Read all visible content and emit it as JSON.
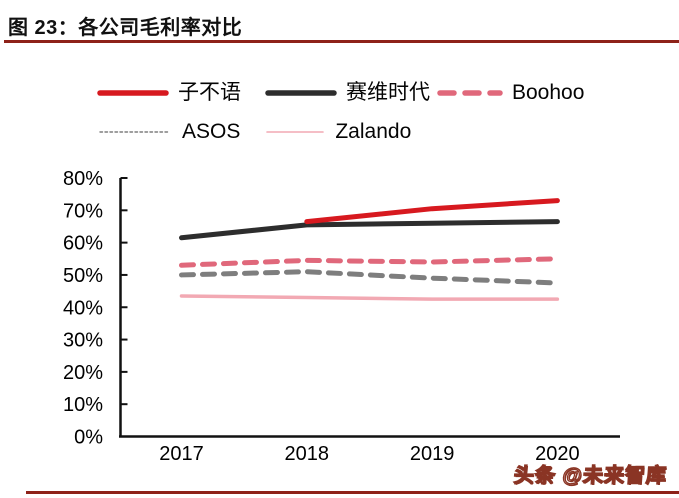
{
  "figure": {
    "title": "图 23：各公司毛利率对比",
    "watermark": "头条 @未来智库",
    "accent_color": "#8e2219"
  },
  "chart_data": {
    "type": "line",
    "title": "各公司毛利率对比",
    "categories": [
      "2017",
      "2018",
      "2019",
      "2020"
    ],
    "series": [
      {
        "name": "子不语",
        "color": "#d7191f",
        "style": "solid",
        "line_width": 5,
        "legend_style": "solid-thick",
        "values": [
          null,
          66.5,
          70.5,
          73
        ]
      },
      {
        "name": "赛维时代",
        "color": "#2d2d2d",
        "style": "solid",
        "line_width": 5,
        "legend_style": "solid-thick",
        "values": [
          61.5,
          65.5,
          66,
          66.5
        ]
      },
      {
        "name": "Boohoo",
        "color": "#e0687b",
        "style": "dashed",
        "line_width": 5,
        "legend_style": "dashed-thick",
        "values": [
          53,
          54.5,
          54,
          55
        ]
      },
      {
        "name": "ASOS",
        "color": "#7e7e7e",
        "style": "dashed",
        "line_width": 5,
        "legend_style": "dotted-thin",
        "values": [
          50,
          51,
          49,
          47.5
        ]
      },
      {
        "name": "Zalando",
        "color": "#f2a9b3",
        "style": "solid",
        "line_width": 3.5,
        "legend_style": "solid-thin",
        "values": [
          43.5,
          43,
          42.5,
          42.5
        ]
      }
    ],
    "xlabel": "",
    "ylabel": "",
    "ylim": [
      0,
      80
    ],
    "ytick_step": 10,
    "ytick_labels": [
      "0%",
      "10%",
      "20%",
      "30%",
      "40%",
      "50%",
      "60%",
      "70%",
      "80%"
    ],
    "grid": false,
    "legend_position": "top"
  }
}
